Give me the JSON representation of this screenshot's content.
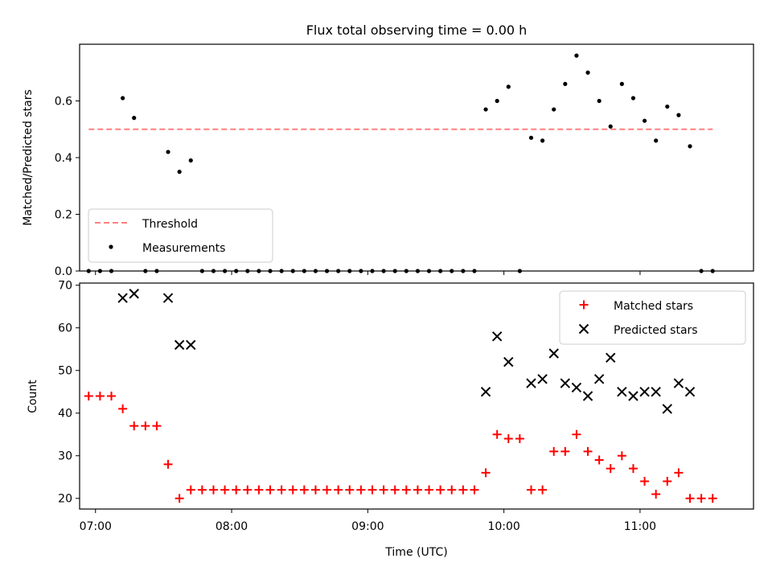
{
  "figure": {
    "title": "Flux total observing time = 0.00 h"
  },
  "colors": {
    "threshold": "#ff8080",
    "measurements": "#000000",
    "matched": "#ff0000",
    "predicted": "#000000"
  },
  "chart_data": [
    {
      "type": "scatter",
      "panel": "top",
      "title": "Flux total observing time = 0.00 h",
      "xlabel": "",
      "ylabel": "Matched/Predicted stars",
      "x_unit": "UTC time",
      "xlim": [
        "06:53",
        "11:50"
      ],
      "ylim": [
        0,
        0.8
      ],
      "yticks": [
        0.0,
        0.2,
        0.4,
        0.6
      ],
      "ytick_labels": [
        "0.0",
        "0.2",
        "0.4",
        "0.6"
      ],
      "grid": false,
      "legend": {
        "position": "lower-left",
        "entries": [
          "Threshold",
          "Measurements"
        ]
      },
      "threshold": {
        "name": "Threshold",
        "style": "dashed",
        "value": 0.5,
        "x": [
          "06:57",
          "11:32"
        ]
      },
      "series": [
        {
          "name": "Measurements",
          "marker": "dot",
          "x": [
            "06:57",
            "07:02",
            "07:07",
            "07:12",
            "07:17",
            "07:22",
            "07:27",
            "07:32",
            "07:37",
            "07:42",
            "07:47",
            "07:52",
            "07:57",
            "08:02",
            "08:07",
            "08:12",
            "08:17",
            "08:22",
            "08:27",
            "08:32",
            "08:37",
            "08:42",
            "08:47",
            "08:52",
            "08:57",
            "09:02",
            "09:07",
            "09:12",
            "09:17",
            "09:22",
            "09:27",
            "09:32",
            "09:37",
            "09:42",
            "09:47",
            "09:52",
            "09:57",
            "10:02",
            "10:07",
            "10:12",
            "10:17",
            "10:22",
            "10:27",
            "10:32",
            "10:37",
            "10:42",
            "10:47",
            "10:52",
            "10:57",
            "11:02",
            "11:07",
            "11:12",
            "11:17",
            "11:22",
            "11:27",
            "11:32"
          ],
          "y": [
            0,
            0,
            0,
            0.61,
            0.54,
            0,
            0,
            0.42,
            0.35,
            0.39,
            0,
            0,
            0,
            0,
            0,
            0,
            0,
            0,
            0,
            0,
            0,
            0,
            0,
            0,
            0,
            0,
            0,
            0,
            0,
            0,
            0,
            0,
            0,
            0,
            0,
            0.57,
            0.6,
            0.65,
            0,
            0.47,
            0.46,
            0.57,
            0.66,
            0.76,
            0.7,
            0.6,
            0.51,
            0.66,
            0.61,
            0.53,
            0.46,
            0.58,
            0.55,
            0.44,
            0,
            0
          ]
        }
      ]
    },
    {
      "type": "scatter",
      "panel": "bottom",
      "xlabel": "Time (UTC)",
      "ylabel": "Count",
      "xlim": [
        "06:53",
        "11:50"
      ],
      "xticks": [
        "07:00",
        "08:00",
        "09:00",
        "10:00",
        "11:00"
      ],
      "xtick_labels": [
        "07:00",
        "08:00",
        "09:00",
        "10:00",
        "11:00"
      ],
      "ylim": [
        17.5,
        70.5
      ],
      "yticks": [
        20,
        30,
        40,
        50,
        60,
        70
      ],
      "ytick_labels": [
        "20",
        "30",
        "40",
        "50",
        "60",
        "70"
      ],
      "grid": false,
      "legend": {
        "position": "upper-right",
        "entries": [
          "Matched stars",
          "Predicted stars"
        ]
      },
      "series": [
        {
          "name": "Matched stars",
          "marker": "plus",
          "x": [
            "06:57",
            "07:02",
            "07:07",
            "07:12",
            "07:17",
            "07:22",
            "07:27",
            "07:32",
            "07:37",
            "07:42",
            "07:47",
            "07:52",
            "07:57",
            "08:02",
            "08:07",
            "08:12",
            "08:17",
            "08:22",
            "08:27",
            "08:32",
            "08:37",
            "08:42",
            "08:47",
            "08:52",
            "08:57",
            "09:02",
            "09:07",
            "09:12",
            "09:17",
            "09:22",
            "09:27",
            "09:32",
            "09:37",
            "09:42",
            "09:47",
            "09:52",
            "09:57",
            "10:02",
            "10:07",
            "10:12",
            "10:17",
            "10:22",
            "10:27",
            "10:32",
            "10:37",
            "10:42",
            "10:47",
            "10:52",
            "10:57",
            "11:02",
            "11:07",
            "11:12",
            "11:17",
            "11:22",
            "11:27",
            "11:32"
          ],
          "y": [
            44,
            44,
            44,
            41,
            37,
            37,
            37,
            28,
            20,
            22,
            22,
            22,
            22,
            22,
            22,
            22,
            22,
            22,
            22,
            22,
            22,
            22,
            22,
            22,
            22,
            22,
            22,
            22,
            22,
            22,
            22,
            22,
            22,
            22,
            22,
            26,
            35,
            34,
            34,
            22,
            22,
            31,
            31,
            35,
            31,
            29,
            27,
            30,
            27,
            24,
            21,
            24,
            26,
            20,
            20,
            20
          ]
        },
        {
          "name": "Predicted stars",
          "marker": "x",
          "x": [
            "07:12",
            "07:17",
            "07:32",
            "07:37",
            "07:42",
            "09:52",
            "09:57",
            "10:02",
            "10:12",
            "10:17",
            "10:22",
            "10:27",
            "10:32",
            "10:37",
            "10:42",
            "10:47",
            "10:52",
            "10:57",
            "11:02",
            "11:07",
            "11:12",
            "11:17",
            "11:22"
          ],
          "y": [
            67,
            68,
            67,
            56,
            56,
            45,
            58,
            52,
            47,
            48,
            54,
            47,
            46,
            44,
            48,
            53,
            45,
            44,
            45,
            45,
            41,
            47,
            45
          ]
        }
      ]
    }
  ]
}
